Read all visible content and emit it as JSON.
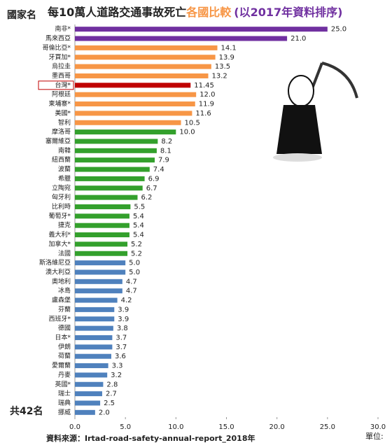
{
  "chart_data": {
    "type": "hbar",
    "title": "每10萬人道路交通事故死亡",
    "title_highlight": "各國比較",
    "subtitle": "(以2017年資料排序)",
    "y_label": "國家名",
    "count_note": "共42名",
    "source": "資料來源：Irtad-road-safety-annual-report_2018年",
    "unit": "單位:",
    "categories": [
      "南非*",
      "馬來西亞",
      "哥倫比亞*",
      "牙買加*",
      "烏拉圭",
      "墨西哥",
      "台灣*",
      "阿根廷",
      "柬埔寨*",
      "美國*",
      "智利",
      "摩洛哥",
      "塞爾維亞",
      "南韓",
      "紐西蘭",
      "波蘭",
      "希臘",
      "立陶宛",
      "匈牙利",
      "比利時",
      "葡萄牙*",
      "捷克",
      "義大利*",
      "加拿大*",
      "法國",
      "斯洛維尼亞",
      "澳大利亞",
      "奧地利",
      "冰島",
      "盧森堡",
      "芬蘭",
      "西班牙*",
      "德國",
      "日本*",
      "伊朗",
      "荷蘭",
      "愛爾蘭",
      "丹麥",
      "英國*",
      "瑞士",
      "瑞典",
      "挪威"
    ],
    "values": [
      25.0,
      21.0,
      14.1,
      13.9,
      13.5,
      13.2,
      11.45,
      12.0,
      11.9,
      11.6,
      10.5,
      10.0,
      8.2,
      8.1,
      7.9,
      7.4,
      6.9,
      6.7,
      6.2,
      5.5,
      5.4,
      5.4,
      5.4,
      5.2,
      5.2,
      5.0,
      5.0,
      4.7,
      4.7,
      4.2,
      3.9,
      3.9,
      3.8,
      3.7,
      3.7,
      3.6,
      3.3,
      3.2,
      2.8,
      2.7,
      2.5,
      2.0
    ],
    "value_labels": [
      "25.0",
      "21.0",
      "14.1",
      "13.9",
      "13.5",
      "13.2",
      "11.45",
      "12.0",
      "11.9",
      "11.6",
      "10.5",
      "10.0",
      "8.2",
      "8.1",
      "7.9",
      "7.4",
      "6.9",
      "6.7",
      "6.2",
      "5.5",
      "5.4",
      "5.4",
      "5.4",
      "5.2",
      "5.2",
      "5.0",
      "5.0",
      "4.7",
      "4.7",
      "4.2",
      "3.9",
      "3.9",
      "3.8",
      "3.7",
      "3.7",
      "3.6",
      "3.3",
      "3.2",
      "2.8",
      "2.7",
      "2.5",
      "2.0"
    ],
    "colors": [
      "#7030a0",
      "#7030a0",
      "#f79646",
      "#f79646",
      "#f79646",
      "#f79646",
      "#c00000",
      "#f79646",
      "#f79646",
      "#f79646",
      "#f79646",
      "#33a02c",
      "#33a02c",
      "#33a02c",
      "#33a02c",
      "#33a02c",
      "#33a02c",
      "#33a02c",
      "#33a02c",
      "#33a02c",
      "#33a02c",
      "#33a02c",
      "#33a02c",
      "#33a02c",
      "#33a02c",
      "#4f81bd",
      "#4f81bd",
      "#4f81bd",
      "#4f81bd",
      "#4f81bd",
      "#4f81bd",
      "#4f81bd",
      "#4f81bd",
      "#4f81bd",
      "#4f81bd",
      "#4f81bd",
      "#4f81bd",
      "#4f81bd",
      "#4f81bd",
      "#4f81bd",
      "#4f81bd",
      "#4f81bd"
    ],
    "highlight_index": 6,
    "xlim": [
      0,
      30
    ],
    "xticks": [
      {
        "value": 0,
        "label": "0.0"
      },
      {
        "value": 5,
        "label": "5.0"
      },
      {
        "value": 10,
        "label": "10.0"
      },
      {
        "value": 15,
        "label": "15.0"
      },
      {
        "value": 20,
        "label": "20.0"
      },
      {
        "value": 25,
        "label": "25.0"
      },
      {
        "value": 30,
        "label": "30.0"
      }
    ]
  }
}
